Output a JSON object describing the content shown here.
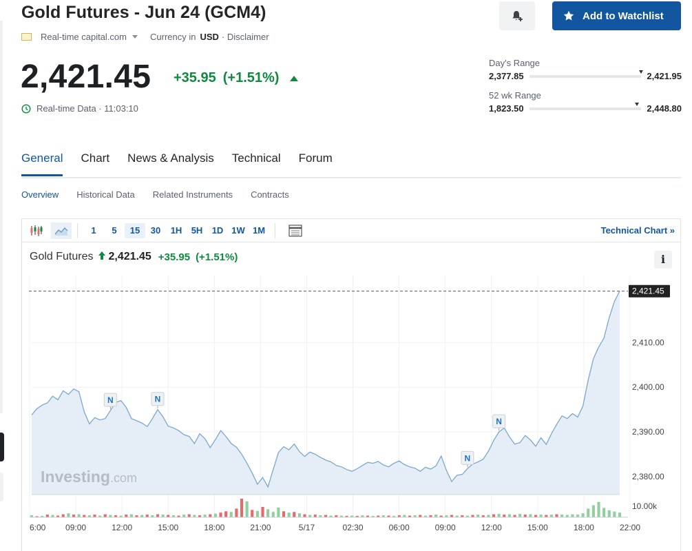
{
  "header": {
    "title": "Gold Futures - Jun 24 (GCM4)",
    "source": "Real-time capital.com",
    "currency_label": "Currency in",
    "currency": "USD",
    "disclaimer": "· Disclaimer",
    "watchlist_label": "Add to Watchlist",
    "price": "2,421.45",
    "change": "+35.95",
    "change_pct": "(+1.51%)",
    "realtime": "Real-time Data · 11:03:10",
    "accent_color": "#1256a0",
    "up_color": "#0e8a3e"
  },
  "ranges": {
    "day": {
      "label": "Day's Range",
      "low": "2,377.85",
      "high": "2,421.95",
      "position": 1.0
    },
    "week52": {
      "label": "52 wk Range",
      "low": "1,823.50",
      "high": "2,448.80",
      "position": 0.96
    }
  },
  "tabs": [
    "General",
    "Chart",
    "News & Analysis",
    "Technical",
    "Forum"
  ],
  "active_tab": "General",
  "subtabs": [
    "Overview",
    "Historical Data",
    "Related Instruments",
    "Contracts"
  ],
  "active_subtab": "Overview",
  "toolbar": {
    "timeframes": [
      "1",
      "5",
      "15",
      "30",
      "1H",
      "5H",
      "1D",
      "1W",
      "1M"
    ],
    "active_timeframe": "15",
    "technical_chart": "Technical Chart »",
    "icons": [
      "candlestick-icon",
      "area-chart-icon",
      "table-icon"
    ]
  },
  "chart_head": {
    "name": "Gold Futures",
    "price": "2,421.45",
    "change": "+35.95",
    "change_pct": "(+1.51%)",
    "info": "i"
  },
  "watermark": {
    "main": "Investing",
    "suffix": ".com"
  },
  "chart_data": {
    "type": "area",
    "x_tick_labels": [
      "6:00",
      "09:00",
      "12:00",
      "15:00",
      "18:00",
      "21:00",
      "5/17",
      "02:30",
      "06:00",
      "09:00",
      "12:00",
      "15:00",
      "18:00",
      "22:00"
    ],
    "y_tick_labels": [
      "2,380.00",
      "2,390.00",
      "2,400.00",
      "2,410.00"
    ],
    "ylim": [
      2376,
      2425
    ],
    "current_price_label": "2,421.45",
    "volume_axis_label": "10.00k",
    "news_markers": [
      {
        "label": "N",
        "index": 15
      },
      {
        "label": "N",
        "index": 24
      },
      {
        "label": "N",
        "index": 83
      },
      {
        "label": "N",
        "index": 89
      }
    ],
    "values": [
      2393.8,
      2395.2,
      2396.0,
      2396.5,
      2398.0,
      2397.2,
      2399.2,
      2398.4,
      2399.6,
      2399.0,
      2394.5,
      2391.8,
      2393.2,
      2392.7,
      2393.0,
      2394.8,
      2396.6,
      2397.0,
      2395.5,
      2393.0,
      2392.5,
      2392.0,
      2391.2,
      2393.0,
      2395.0,
      2393.4,
      2391.3,
      2390.9,
      2390.3,
      2389.4,
      2389.0,
      2387.4,
      2389.6,
      2388.5,
      2386.5,
      2388.3,
      2390.3,
      2389.0,
      2387.4,
      2386.6,
      2385.0,
      2383.0,
      2380.8,
      2378.3,
      2379.8,
      2377.7,
      2381.6,
      2385.4,
      2386.7,
      2386.0,
      2387.3,
      2385.6,
      2384.5,
      2385.5,
      2385.0,
      2384.3,
      2383.7,
      2383.3,
      2382.5,
      2382.2,
      2381.6,
      2381.2,
      2381.8,
      2382.5,
      2383.2,
      2383.0,
      2383.4,
      2382.6,
      2382.2,
      2383.0,
      2383.5,
      2382.7,
      2382.2,
      2381.9,
      2381.2,
      2382.1,
      2381.7,
      2382.4,
      2384.6,
      2381.4,
      2378.9,
      2380.3,
      2380.5,
      2381.8,
      2382.8,
      2383.3,
      2383.9,
      2385.7,
      2388.1,
      2390.0,
      2390.9,
      2388.9,
      2387.3,
      2387.6,
      2389.2,
      2388.2,
      2386.8,
      2388.7,
      2387.2,
      2389.6,
      2391.7,
      2393.6,
      2393.0,
      2394.1,
      2393.3,
      2395.8,
      2401.7,
      2406.4,
      2409.0,
      2411.0,
      2415.6,
      2419.2,
      2421.5
    ],
    "volume": [
      0.6,
      0.3,
      0.4,
      0.8,
      0.7,
      0.5,
      0.9,
      1.2,
      0.8,
      0.9,
      0.7,
      0.6,
      0.8,
      0.5,
      0.9,
      0.7,
      0.6,
      0.5,
      0.8,
      0.9,
      0.6,
      0.7,
      0.8,
      0.6,
      0.9,
      0.8,
      0.7,
      0.6,
      0.5,
      0.8,
      0.9,
      0.7,
      0.6,
      0.8,
      0.9,
      1.1,
      1.4,
      1.8,
      1.6,
      2.6,
      5.6,
      4.8,
      2.2,
      1.9,
      3.1,
      2.4,
      1.6,
      2.9,
      1.8,
      1.4,
      1.6,
      1.2,
      0.9,
      0.7,
      0.8,
      0.6,
      0.7,
      0.5,
      0.6,
      0.5,
      0.4,
      0.5,
      0.4,
      0.6,
      0.5,
      0.4,
      0.5,
      0.6,
      0.5,
      0.4,
      0.6,
      0.7,
      0.5,
      0.6,
      0.7,
      0.5,
      0.6,
      0.8,
      0.5,
      0.6,
      0.7,
      0.5,
      0.6,
      0.5,
      0.7,
      0.8,
      0.6,
      0.7,
      0.9,
      1.0,
      0.8,
      0.9,
      0.7,
      1.0,
      0.8,
      0.9,
      0.7,
      0.8,
      0.7,
      0.8,
      0.9,
      0.8,
      0.7,
      0.9,
      0.8,
      1.2,
      2.6,
      3.6,
      4.6,
      2.8,
      2.1,
      1.7,
      1.4
    ],
    "volume_up": [
      true,
      false,
      true,
      false,
      true,
      false,
      false,
      true,
      false,
      true,
      false,
      true,
      false,
      true,
      false,
      true,
      false,
      true,
      false,
      true,
      false,
      true,
      false,
      true,
      false,
      true,
      false,
      true,
      false,
      true,
      false,
      true,
      false,
      true,
      false,
      true,
      false,
      false,
      true,
      false,
      false,
      true,
      false,
      true,
      false,
      true,
      true,
      true,
      false,
      true,
      false,
      true,
      false,
      true,
      false,
      true,
      false,
      true,
      false,
      true,
      false,
      true,
      false,
      true,
      false,
      true,
      false,
      true,
      false,
      true,
      false,
      true,
      false,
      true,
      false,
      true,
      false,
      true,
      false,
      true,
      false,
      true,
      false,
      true,
      false,
      true,
      false,
      true,
      false,
      true,
      false,
      true,
      false,
      true,
      false,
      true,
      false,
      true,
      false,
      true,
      false,
      true,
      true,
      true,
      true,
      true,
      true,
      true,
      true,
      true,
      true,
      true,
      true
    ],
    "line_color": "#7aa7cf",
    "fill_color": "#e5eef6",
    "volume_up_color": "#91d09e",
    "volume_down_color": "#e56a6a"
  }
}
